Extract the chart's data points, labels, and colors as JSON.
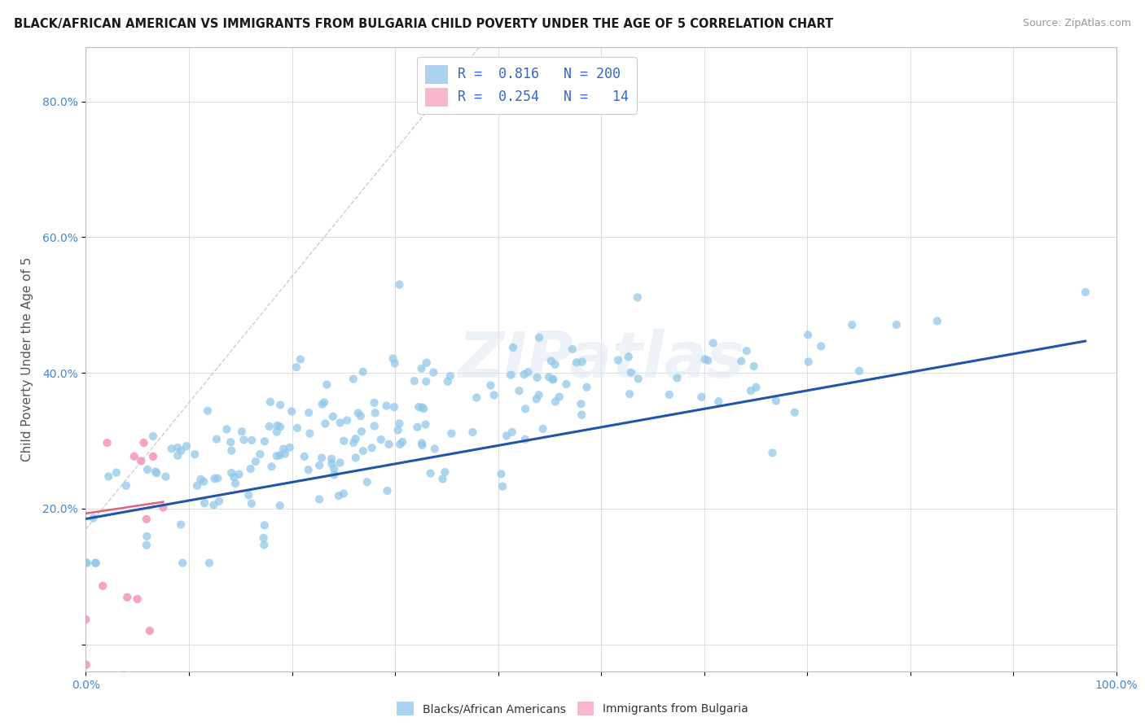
{
  "title": "BLACK/AFRICAN AMERICAN VS IMMIGRANTS FROM BULGARIA CHILD POVERTY UNDER THE AGE OF 5 CORRELATION CHART",
  "source": "Source: ZipAtlas.com",
  "ylabel": "Child Poverty Under the Age of 5",
  "xlim": [
    0,
    1.0
  ],
  "ylim": [
    -0.04,
    0.88
  ],
  "x_ticks": [
    0.0,
    0.1,
    0.2,
    0.3,
    0.4,
    0.5,
    0.6,
    0.7,
    0.8,
    0.9,
    1.0
  ],
  "x_tick_labels": [
    "0.0%",
    "",
    "",
    "",
    "",
    "",
    "",
    "",
    "",
    "",
    "100.0%"
  ],
  "y_ticks": [
    0.0,
    0.2,
    0.4,
    0.6,
    0.8
  ],
  "y_tick_labels": [
    "",
    "20.0%",
    "40.0%",
    "60.0%",
    "80.0%"
  ],
  "blue_scatter_color": "#8ec6e8",
  "pink_scatter_color": "#f48fb1",
  "blue_line_color": "#2255aa",
  "diagonal_color": "#c8c8c8",
  "blue_R": 0.816,
  "pink_R": 0.254,
  "blue_N": 200,
  "pink_N": 14,
  "legend_blue_color": "#aad4f0",
  "legend_pink_color": "#f8b8cc",
  "watermark_text": "ZIPatlas",
  "background_color": "#ffffff",
  "grid_color": "#d8d8d8"
}
